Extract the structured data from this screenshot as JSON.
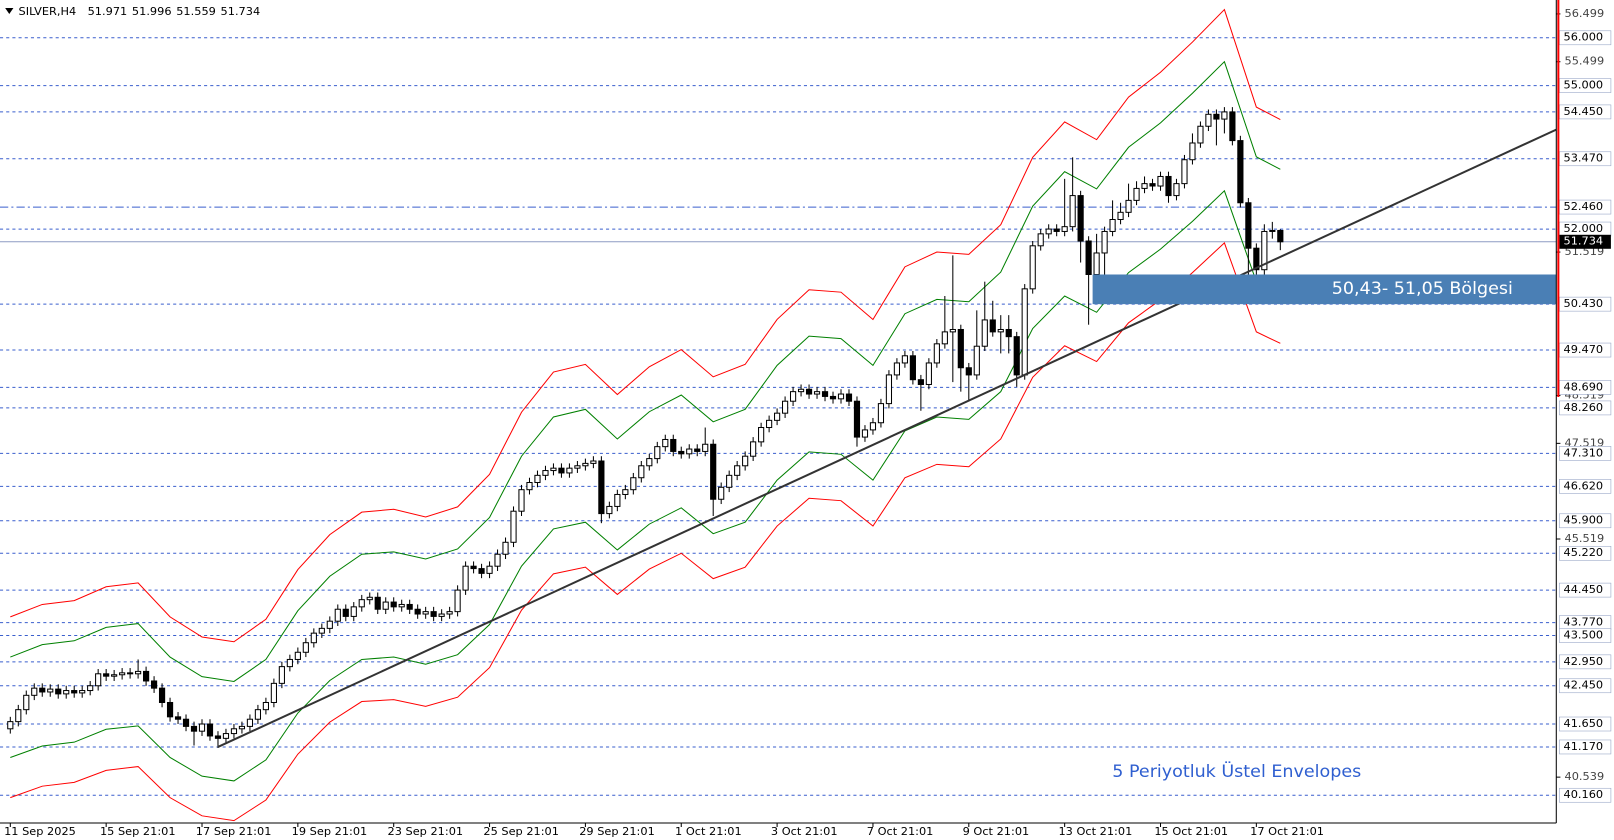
{
  "chart_data": {
    "type": "candlestick",
    "symbol": "SILVER,H4",
    "annotation": "5 Periyotluk Üstel Envelopes",
    "xlim": [
      -1.29,
      193.55
    ],
    "ylim": [
      39.58,
      56.79
    ],
    "xticks": [
      {
        "value": 0,
        "label": "11 Sep 2025"
      },
      {
        "value": 12,
        "label": "15 Sep 21:01"
      },
      {
        "value": 24,
        "label": "17 Sep 21:01"
      },
      {
        "value": 36,
        "label": "19 Sep 21:01"
      },
      {
        "value": 48,
        "label": "23 Sep 21:01"
      },
      {
        "value": 60,
        "label": "25 Sep 21:01"
      },
      {
        "value": 72,
        "label": "29 Sep 21:01"
      },
      {
        "value": 84,
        "label": "1 Oct 21:01"
      },
      {
        "value": 96,
        "label": "3 Oct 21:01"
      },
      {
        "value": 108,
        "label": "7 Oct 21:01"
      },
      {
        "value": 120,
        "label": "9 Oct 21:01"
      },
      {
        "value": 132,
        "label": "13 Oct 21:01"
      },
      {
        "value": 144,
        "label": "15 Oct 21:01"
      },
      {
        "value": 156,
        "label": "17 Oct 21:01"
      }
    ],
    "yticks": [
      56.499,
      55.499,
      51.519,
      48.519,
      47.519,
      45.519,
      40.539
    ],
    "levels": [
      {
        "value": 56,
        "label": "56.000",
        "style": "dash"
      },
      {
        "value": 55,
        "label": "55.000",
        "style": "dash"
      },
      {
        "value": 54.45,
        "label": "54.450",
        "style": "dash"
      },
      {
        "value": 53.47,
        "label": "53.470",
        "style": "dash"
      },
      {
        "value": 52.46,
        "label": "52.460",
        "style": "dashdot"
      },
      {
        "value": 52,
        "label": "52.000",
        "style": "dash"
      },
      {
        "value": 50.43,
        "label": "50.430",
        "style": "dash"
      },
      {
        "value": 49.47,
        "label": "49.470",
        "style": "dash"
      },
      {
        "value": 48.69,
        "label": "48.690",
        "style": "dash"
      },
      {
        "value": 48.26,
        "label": "48.260",
        "style": "dash"
      },
      {
        "value": 47.31,
        "label": "47.310",
        "style": "dash"
      },
      {
        "value": 46.62,
        "label": "46.620",
        "style": "dash"
      },
      {
        "value": 45.9,
        "label": "45.900",
        "style": "dash"
      },
      {
        "value": 45.22,
        "label": "45.220",
        "style": "dash"
      },
      {
        "value": 44.45,
        "label": "44.450",
        "style": "dash"
      },
      {
        "value": 43.77,
        "label": "43.770",
        "style": "dash"
      },
      {
        "value": 43.5,
        "label": "43.500",
        "style": "dash"
      },
      {
        "value": 42.95,
        "label": "42.950",
        "style": "dash"
      },
      {
        "value": 42.45,
        "label": "42.450",
        "style": "dash"
      },
      {
        "value": 41.65,
        "label": "41.650",
        "style": "dash"
      },
      {
        "value": 41.17,
        "label": "41.170",
        "style": "dash"
      },
      {
        "value": 40.16,
        "label": "40.160",
        "style": "dash"
      }
    ],
    "level_color": "#3a5fcd",
    "candles": {
      "open": [
        41.55,
        41.7,
        41.95,
        42.25,
        42.4,
        42.32,
        42.38,
        42.28,
        42.35,
        42.3,
        42.35,
        42.45,
        42.7,
        42.65,
        42.68,
        42.72,
        42.7,
        42.75,
        42.55,
        42.4,
        42.1,
        41.8,
        41.75,
        41.6,
        41.5,
        41.65,
        41.4,
        41.35,
        41.45,
        41.55,
        41.6,
        41.75,
        41.95,
        42.1,
        42.5,
        42.85,
        43.0,
        43.15,
        43.35,
        43.55,
        43.65,
        43.8,
        44.05,
        43.9,
        44.1,
        44.25,
        44.3,
        44.05,
        44.2,
        44.1,
        44.15,
        44.05,
        43.95,
        44.0,
        43.9,
        43.95,
        44.0,
        44.45,
        44.95,
        44.9,
        44.8,
        44.95,
        45.2,
        45.45,
        46.1,
        46.55,
        46.7,
        46.85,
        46.95,
        47.0,
        46.9,
        47.0,
        47.05,
        47.1,
        47.15,
        46.05,
        46.2,
        46.45,
        46.55,
        46.8,
        47.05,
        47.2,
        47.45,
        47.6,
        47.35,
        47.3,
        47.4,
        47.35,
        47.5,
        46.35,
        46.6,
        46.85,
        47.05,
        47.25,
        47.55,
        47.85,
        48.0,
        48.15,
        48.4,
        48.6,
        48.65,
        48.55,
        48.6,
        48.5,
        48.45,
        48.55,
        48.4,
        47.65,
        47.8,
        47.95,
        48.35,
        48.95,
        49.2,
        49.35,
        48.85,
        48.75,
        49.2,
        49.6,
        49.85,
        49.9,
        49.1,
        48.95,
        49.55,
        50.1,
        49.85,
        49.9,
        49.75,
        48.95,
        50.75,
        51.65,
        51.9,
        52.0,
        51.95,
        52.05,
        52.7,
        51.75,
        51.05,
        51.5,
        51.95,
        52.2,
        52.35,
        52.6,
        52.85,
        52.95,
        52.9,
        53.1,
        52.7,
        52.95,
        53.45,
        53.8,
        54.15,
        54.4,
        54.3,
        54.45,
        53.85,
        52.55,
        51.6,
        51.15,
        51.95,
        51.971
      ],
      "high": [
        41.8,
        42.05,
        42.35,
        42.5,
        42.5,
        42.48,
        42.48,
        42.45,
        42.45,
        42.45,
        42.55,
        42.8,
        42.8,
        42.78,
        42.82,
        42.82,
        43.0,
        42.85,
        42.65,
        42.5,
        42.2,
        41.9,
        41.85,
        41.7,
        41.75,
        41.75,
        41.5,
        41.55,
        41.65,
        41.7,
        41.85,
        42.05,
        42.2,
        42.6,
        42.95,
        43.1,
        43.25,
        43.45,
        43.65,
        43.75,
        43.9,
        44.15,
        44.15,
        44.2,
        44.35,
        44.4,
        44.4,
        44.3,
        44.3,
        44.25,
        44.25,
        44.15,
        44.1,
        44.1,
        44.05,
        44.1,
        44.55,
        45.05,
        45.05,
        45.0,
        45.05,
        45.3,
        45.55,
        46.2,
        46.65,
        46.8,
        46.95,
        47.05,
        47.1,
        47.1,
        47.1,
        47.15,
        47.2,
        47.25,
        47.25,
        46.3,
        46.55,
        46.65,
        46.9,
        47.15,
        47.3,
        47.55,
        47.7,
        47.7,
        47.45,
        47.5,
        47.5,
        47.85,
        47.6,
        46.7,
        46.95,
        47.15,
        47.35,
        47.65,
        47.95,
        48.1,
        48.25,
        48.5,
        48.7,
        48.75,
        48.75,
        48.7,
        48.7,
        48.6,
        48.65,
        48.65,
        48.5,
        47.9,
        48.05,
        48.45,
        49.05,
        49.3,
        49.45,
        49.45,
        48.95,
        49.3,
        49.7,
        50.6,
        51.45,
        50.0,
        49.2,
        50.3,
        50.9,
        50.5,
        50.2,
        50.2,
        49.85,
        50.85,
        51.75,
        52.0,
        52.1,
        52.1,
        53.05,
        53.5,
        52.8,
        51.85,
        51.9,
        52.05,
        52.6,
        52.55,
        52.95,
        53.0,
        53.1,
        53.05,
        53.2,
        53.2,
        53.05,
        53.55,
        54.0,
        54.25,
        54.5,
        54.5,
        54.55,
        54.55,
        53.95,
        52.65,
        51.7,
        52.1,
        52.15,
        51.996
      ],
      "low": [
        41.45,
        41.6,
        41.85,
        42.15,
        42.22,
        42.22,
        42.18,
        42.18,
        42.2,
        42.2,
        42.25,
        42.35,
        42.55,
        42.55,
        42.58,
        42.6,
        42.6,
        42.45,
        42.3,
        42.0,
        41.7,
        41.65,
        41.5,
        41.2,
        41.4,
        41.3,
        41.15,
        41.25,
        41.35,
        41.45,
        41.5,
        41.65,
        41.85,
        42.0,
        42.4,
        42.75,
        42.9,
        43.05,
        43.25,
        43.45,
        43.55,
        43.7,
        43.8,
        43.8,
        44.0,
        44.15,
        43.95,
        43.95,
        44.0,
        44.0,
        43.95,
        43.85,
        43.85,
        43.8,
        43.8,
        43.85,
        43.9,
        44.35,
        44.8,
        44.7,
        44.7,
        44.85,
        45.1,
        45.35,
        46.0,
        46.45,
        46.6,
        46.75,
        46.85,
        46.8,
        46.8,
        46.9,
        46.95,
        47.0,
        45.85,
        45.95,
        46.1,
        46.35,
        46.45,
        46.7,
        46.95,
        47.1,
        47.35,
        47.25,
        47.2,
        47.2,
        47.25,
        47.25,
        46.0,
        46.25,
        46.5,
        46.75,
        46.95,
        47.15,
        47.45,
        47.75,
        47.9,
        48.05,
        48.3,
        48.5,
        48.45,
        48.45,
        48.4,
        48.35,
        48.35,
        48.3,
        47.45,
        47.55,
        47.7,
        47.85,
        48.25,
        48.85,
        49.1,
        48.75,
        48.2,
        48.65,
        49.1,
        49.5,
        48.8,
        48.6,
        48.4,
        48.85,
        49.45,
        49.75,
        49.4,
        49.4,
        48.7,
        48.85,
        50.65,
        51.55,
        51.8,
        51.85,
        51.85,
        51.95,
        51.3,
        50.0,
        50.95,
        50.8,
        51.85,
        52.1,
        52.25,
        52.5,
        52.75,
        52.8,
        52.8,
        52.55,
        52.6,
        52.85,
        53.35,
        53.7,
        54.05,
        53.75,
        54.0,
        53.75,
        52.45,
        50.6,
        50.55,
        51.05,
        51.8,
        51.559
      ],
      "close": [
        41.7,
        41.95,
        42.25,
        42.4,
        42.32,
        42.38,
        42.28,
        42.35,
        42.3,
        42.35,
        42.45,
        42.7,
        42.65,
        42.68,
        42.72,
        42.7,
        42.75,
        42.55,
        42.4,
        42.1,
        41.8,
        41.75,
        41.6,
        41.5,
        41.65,
        41.4,
        41.35,
        41.45,
        41.55,
        41.6,
        41.75,
        41.95,
        42.1,
        42.5,
        42.85,
        43.0,
        43.15,
        43.35,
        43.55,
        43.65,
        43.8,
        44.05,
        43.9,
        44.1,
        44.25,
        44.3,
        44.05,
        44.2,
        44.1,
        44.15,
        44.05,
        43.95,
        44.0,
        43.9,
        43.95,
        44.0,
        44.45,
        44.95,
        44.9,
        44.8,
        44.95,
        45.2,
        45.45,
        46.1,
        46.55,
        46.7,
        46.85,
        46.95,
        47.0,
        46.9,
        47.0,
        47.05,
        47.1,
        47.15,
        46.05,
        46.2,
        46.45,
        46.55,
        46.8,
        47.05,
        47.2,
        47.45,
        47.6,
        47.35,
        47.3,
        47.4,
        47.35,
        47.5,
        46.35,
        46.6,
        46.85,
        47.05,
        47.25,
        47.55,
        47.85,
        48.0,
        48.15,
        48.4,
        48.6,
        48.65,
        48.55,
        48.6,
        48.5,
        48.45,
        48.55,
        48.4,
        47.65,
        47.8,
        47.95,
        48.35,
        48.95,
        49.2,
        49.35,
        48.85,
        48.75,
        49.2,
        49.6,
        49.85,
        49.9,
        49.1,
        48.95,
        49.55,
        50.1,
        49.85,
        49.9,
        49.75,
        48.95,
        50.75,
        51.65,
        51.9,
        52.0,
        51.95,
        52.05,
        52.7,
        51.75,
        51.05,
        51.5,
        51.95,
        52.2,
        52.35,
        52.6,
        52.85,
        52.95,
        52.9,
        53.1,
        52.7,
        52.95,
        53.45,
        53.8,
        54.15,
        54.4,
        54.3,
        54.45,
        53.85,
        52.55,
        51.6,
        51.15,
        51.95,
        51.971,
        51.734
      ]
    },
    "envelopes": {
      "x": [
        0,
        4,
        8,
        12,
        16,
        20,
        24,
        28,
        32,
        36,
        40,
        44,
        48,
        52,
        56,
        60,
        64,
        68,
        72,
        76,
        80,
        84,
        88,
        92,
        96,
        100,
        104,
        108,
        112,
        116,
        120,
        124,
        128,
        132,
        136,
        140,
        144,
        148,
        152,
        156,
        159
      ],
      "series": [
        {
          "color": "#ff0000",
          "values": [
            43.89,
            44.15,
            44.23,
            44.52,
            44.6,
            43.89,
            43.47,
            43.37,
            43.84,
            44.88,
            45.61,
            46.08,
            46.14,
            45.98,
            46.19,
            46.87,
            48.17,
            49.01,
            49.17,
            48.54,
            49.12,
            49.48,
            48.91,
            49.17,
            50.11,
            50.73,
            50.68,
            50.11,
            51.21,
            51.52,
            51.47,
            52.09,
            53.5,
            54.24,
            53.87,
            54.76,
            55.28,
            55.91,
            56.59,
            54.55,
            54.29
          ]
        },
        {
          "color": "#008000",
          "values": [
            43.05,
            43.31,
            43.39,
            43.67,
            43.75,
            43.05,
            42.64,
            42.54,
            43.0,
            44.02,
            44.74,
            45.2,
            45.25,
            45.1,
            45.31,
            45.97,
            47.25,
            48.07,
            48.23,
            47.61,
            48.18,
            48.53,
            47.97,
            48.23,
            49.15,
            49.76,
            49.71,
            49.15,
            50.23,
            50.53,
            50.48,
            51.1,
            52.48,
            53.2,
            52.84,
            53.71,
            54.22,
            54.84,
            55.5,
            53.51,
            53.25
          ]
        },
        {
          "color": "#008000",
          "values": [
            40.95,
            41.19,
            41.27,
            41.54,
            41.61,
            40.95,
            40.56,
            40.46,
            40.9,
            41.88,
            42.56,
            43.0,
            43.05,
            42.9,
            43.1,
            43.73,
            44.95,
            45.73,
            45.87,
            45.29,
            45.83,
            46.17,
            45.63,
            45.87,
            46.75,
            47.34,
            47.29,
            46.75,
            47.78,
            48.07,
            48.02,
            48.6,
            49.92,
            50.6,
            50.26,
            51.09,
            51.58,
            52.16,
            52.8,
            50.9,
            50.65
          ]
        },
        {
          "color": "#ff0000",
          "values": [
            40.11,
            40.35,
            40.43,
            40.68,
            40.76,
            40.11,
            39.73,
            39.63,
            40.06,
            41.02,
            41.69,
            42.12,
            42.16,
            42.02,
            42.21,
            42.83,
            44.03,
            44.79,
            44.93,
            44.36,
            44.89,
            45.22,
            44.69,
            44.93,
            45.79,
            46.37,
            46.32,
            45.79,
            46.8,
            47.08,
            47.03,
            47.61,
            48.9,
            49.56,
            49.23,
            50.04,
            50.52,
            51.09,
            51.71,
            49.85,
            49.61
          ]
        }
      ]
    },
    "trendline": {
      "x": [
        26,
        193.55
      ],
      "values": [
        41.17,
        54.08
      ],
      "color": "#333333"
    },
    "zone": {
      "label": "50,43- 51,05 Bölgesi",
      "from": 50.43,
      "to": 51.05,
      "x_start": 135.5,
      "color": "#4a7fb5"
    }
  }
}
